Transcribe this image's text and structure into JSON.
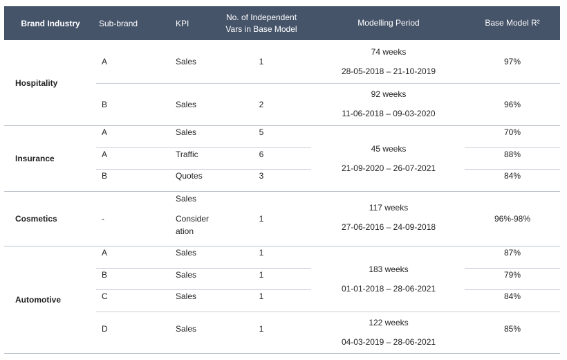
{
  "headers": {
    "industry": "Brand Industry",
    "subbrand": "Sub-brand",
    "kpi": "KPI",
    "vars_line1": "No. of Independent",
    "vars_line2": "Vars in Base Model",
    "period": "Modelling Period",
    "r2": "Base Model R²"
  },
  "industries": [
    "Hospitality",
    "Insurance",
    "Cosmetics",
    "Automotive"
  ],
  "rows": [
    {
      "subbrand": "A",
      "kpi": "Sales",
      "vars": "1",
      "r2": "97%"
    },
    {
      "subbrand": "B",
      "kpi": "Sales",
      "vars": "2",
      "r2": "96%"
    },
    {
      "subbrand": "A",
      "kpi": "Sales",
      "vars": "5",
      "r2": "70%"
    },
    {
      "subbrand": "A",
      "kpi": "Traffic",
      "vars": "6",
      "r2": "88%"
    },
    {
      "subbrand": "B",
      "kpi": "Quotes",
      "vars": "3",
      "r2": "84%"
    },
    {
      "subbrand": "-",
      "kpi1": "Sales",
      "kpi2a": "Consider",
      "kpi2b": "ation",
      "vars": "1",
      "r2": "96%-98%"
    },
    {
      "subbrand": "A",
      "kpi": "Sales",
      "vars": "1",
      "r2": "87%"
    },
    {
      "subbrand": "B",
      "kpi": "Sales",
      "vars": "1",
      "r2": "79%"
    },
    {
      "subbrand": "C",
      "kpi": "Sales",
      "vars": "1",
      "r2": "84%"
    },
    {
      "subbrand": "D",
      "kpi": "Sales",
      "vars": "1",
      "r2": "85%"
    }
  ],
  "periods": [
    {
      "weeks": "74 weeks",
      "range": "28-05-2018 – 21-10-2019"
    },
    {
      "weeks": "92 weeks",
      "range": "11-06-2018 – 09-03-2020"
    },
    {
      "weeks": "45 weeks",
      "range": "21-09-2020 – 26-07-2021"
    },
    {
      "weeks": "117 weeks",
      "range": "27-06-2016 – 24-09-2018"
    },
    {
      "weeks": "183 weeks",
      "range": "01-01-2018 – 28-06-2021"
    },
    {
      "weeks": "122 weeks",
      "range": "04-03-2019 – 28-06-2021"
    }
  ]
}
